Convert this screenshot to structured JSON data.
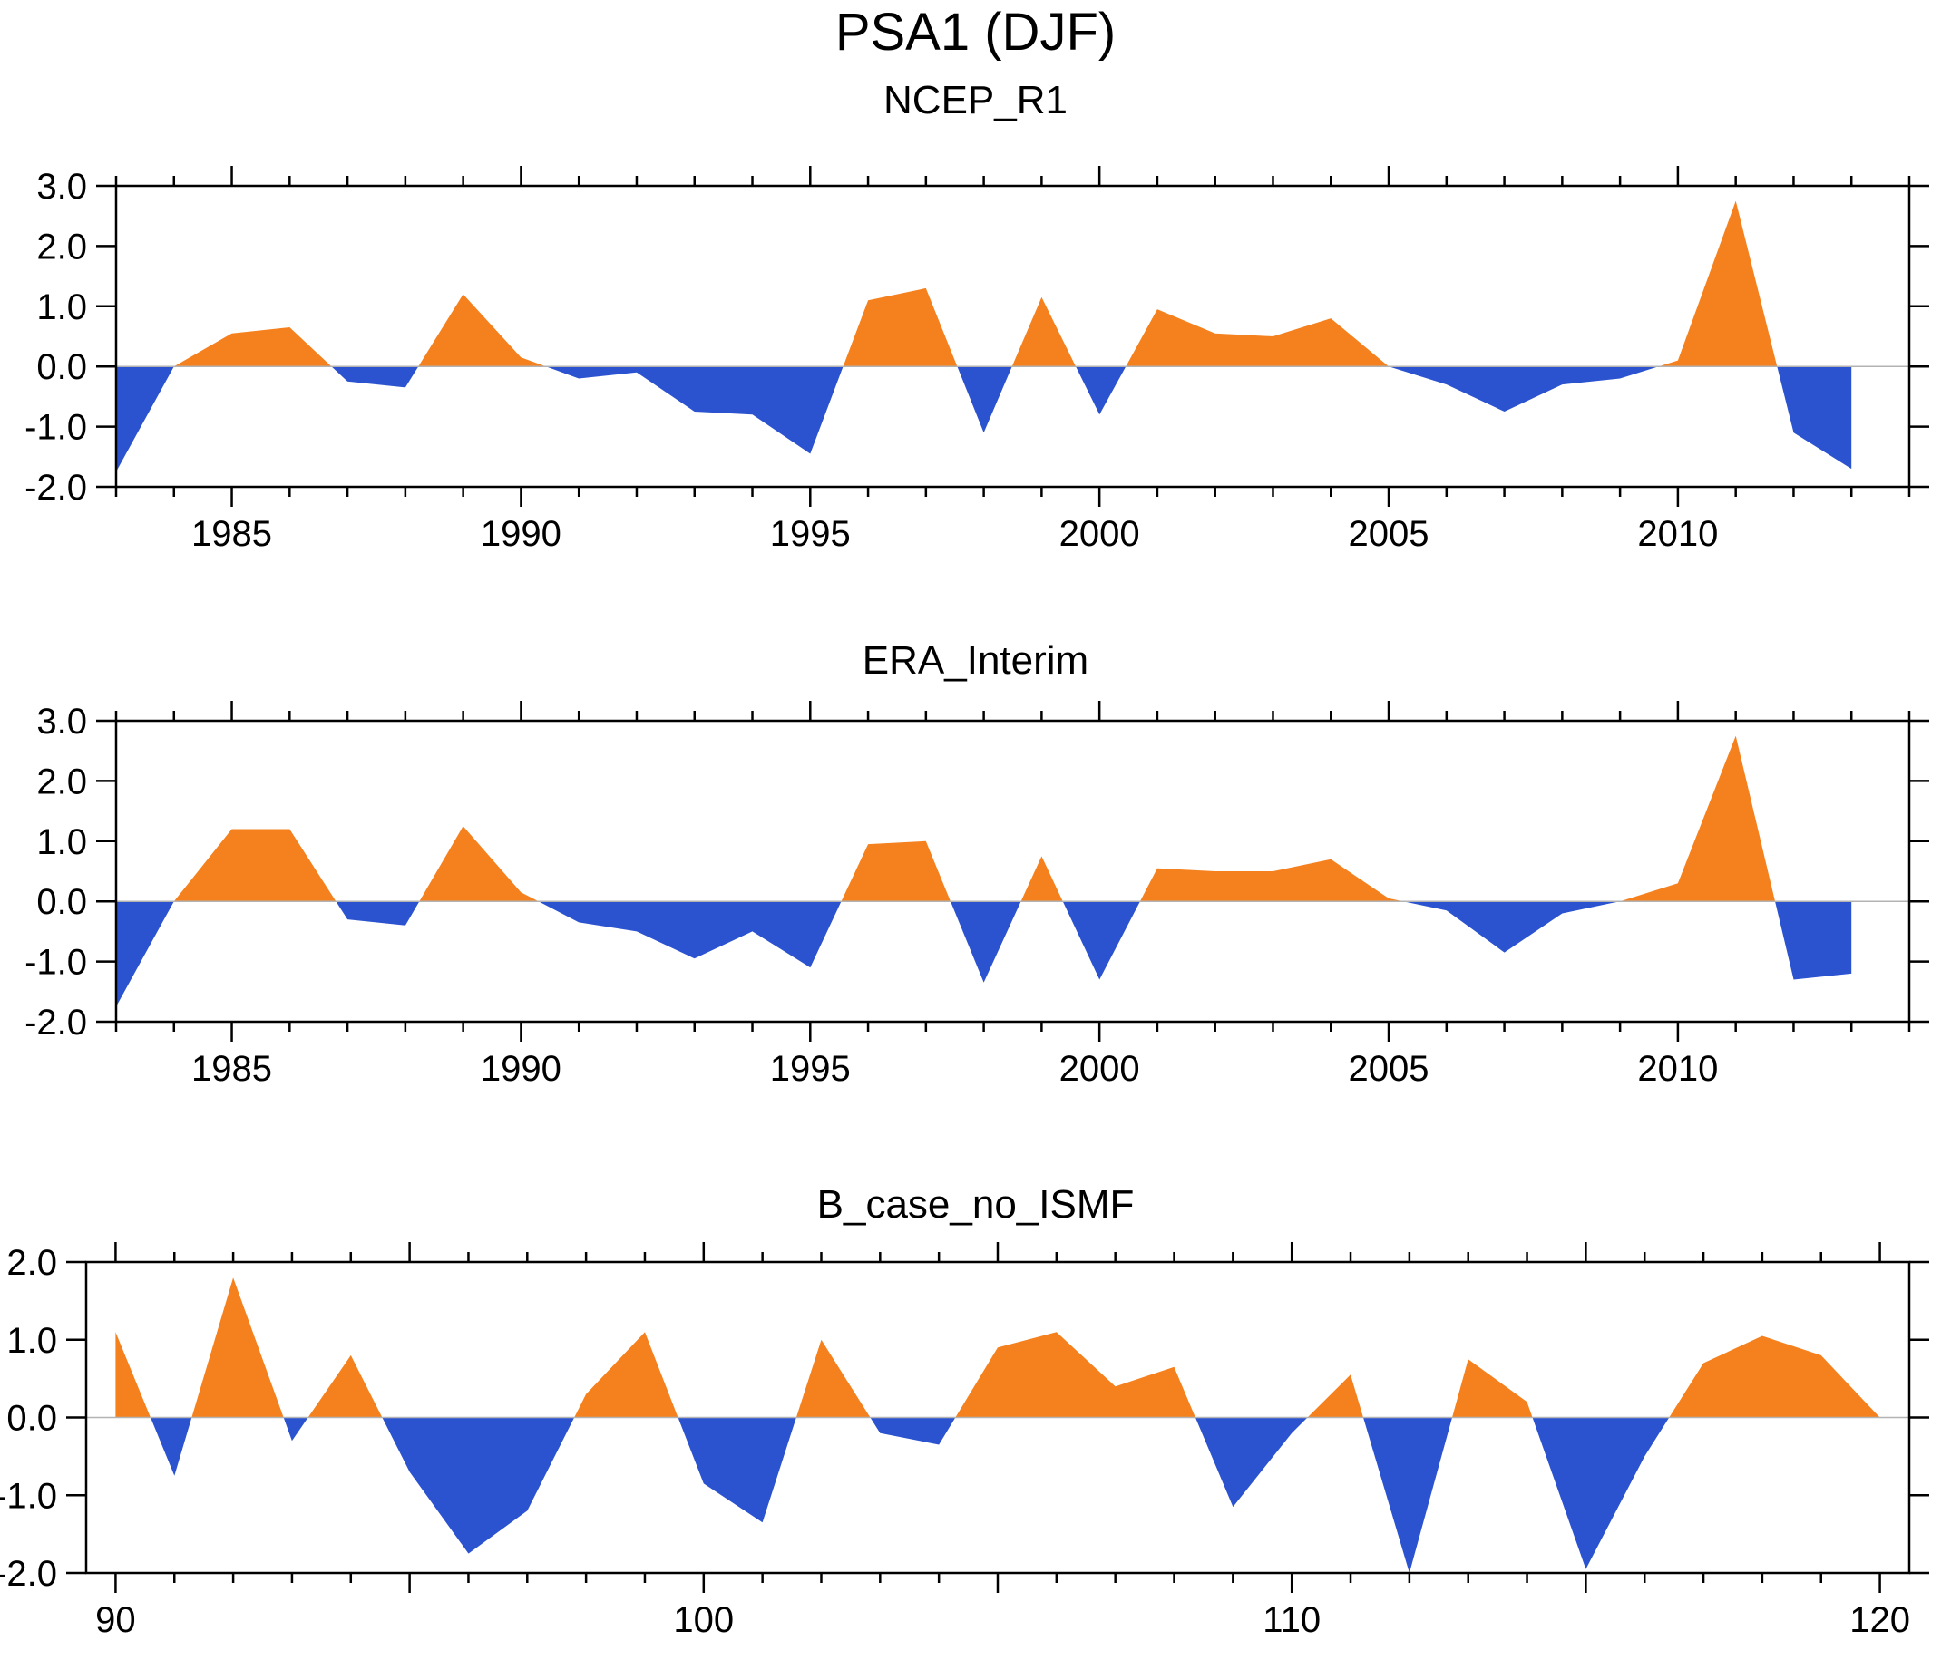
{
  "page_title": "PSA1 (DJF)",
  "colors": {
    "positive": "#F5811E",
    "negative": "#2B53CF",
    "axis": "#000000",
    "zero_line": "#B3B3B3",
    "background": "#FFFFFF",
    "text": "#000000"
  },
  "chart_data": [
    {
      "type": "area",
      "title": "NCEP_R1",
      "xlabel": "",
      "ylabel": "",
      "x": [
        1983,
        1984,
        1985,
        1986,
        1987,
        1988,
        1989,
        1990,
        1991,
        1992,
        1993,
        1994,
        1995,
        1996,
        1997,
        1998,
        1999,
        2000,
        2001,
        2002,
        2003,
        2004,
        2005,
        2006,
        2007,
        2008,
        2009,
        2010,
        2011,
        2012,
        2013
      ],
      "values": [
        -1.75,
        0.0,
        0.55,
        0.65,
        -0.25,
        -0.35,
        1.2,
        0.15,
        -0.2,
        -0.1,
        -0.75,
        -0.8,
        -1.45,
        1.1,
        1.3,
        -1.1,
        1.15,
        -0.8,
        0.95,
        0.55,
        0.5,
        0.8,
        0.0,
        -0.3,
        -0.75,
        -0.3,
        -0.2,
        0.1,
        2.75,
        -1.1,
        -1.7
      ],
      "xlim": [
        1983,
        2014
      ],
      "ylim": [
        -2,
        3
      ],
      "yticks": [
        3,
        2,
        1,
        0,
        -1,
        -2
      ],
      "ytick_labels": [
        "3.0",
        "2.0",
        "1.0",
        "0.0",
        "-1.0",
        "-2.0"
      ],
      "xticks": [
        1985,
        1990,
        1995,
        2000,
        2005,
        2010
      ],
      "xtick_labels": [
        "1985",
        "1990",
        "1995",
        "2000",
        "2005",
        "2010"
      ],
      "xtick_minor_step": 1,
      "xtick_long_every": 5,
      "grid": false,
      "legend": "none"
    },
    {
      "type": "area",
      "title": "ERA_Interim",
      "xlabel": "",
      "ylabel": "",
      "x": [
        1983,
        1984,
        1985,
        1986,
        1987,
        1988,
        1989,
        1990,
        1991,
        1992,
        1993,
        1994,
        1995,
        1996,
        1997,
        1998,
        1999,
        2000,
        2001,
        2002,
        2003,
        2004,
        2005,
        2006,
        2007,
        2008,
        2009,
        2010,
        2011,
        2012,
        2013
      ],
      "values": [
        -1.75,
        0.0,
        1.2,
        1.2,
        -0.3,
        -0.4,
        1.25,
        0.15,
        -0.35,
        -0.5,
        -0.95,
        -0.5,
        -1.1,
        0.95,
        1.0,
        -1.35,
        0.75,
        -1.3,
        0.55,
        0.5,
        0.5,
        0.7,
        0.05,
        -0.15,
        -0.85,
        -0.2,
        0.0,
        0.3,
        2.75,
        -1.3,
        -1.2
      ],
      "xlim": [
        1983,
        2014
      ],
      "ylim": [
        -2,
        3
      ],
      "yticks": [
        3,
        2,
        1,
        0,
        -1,
        -2
      ],
      "ytick_labels": [
        "3.0",
        "2.0",
        "1.0",
        "0.0",
        "-1.0",
        "-2.0"
      ],
      "xticks": [
        1985,
        1990,
        1995,
        2000,
        2005,
        2010
      ],
      "xtick_labels": [
        "1985",
        "1990",
        "1995",
        "2000",
        "2005",
        "2010"
      ],
      "xtick_minor_step": 1,
      "xtick_long_every": 5,
      "grid": false,
      "legend": "none"
    },
    {
      "type": "area",
      "title": "B_case_no_ISMF",
      "xlabel": "",
      "ylabel": "",
      "x": [
        90,
        91,
        92,
        93,
        94,
        95,
        96,
        97,
        98,
        99,
        100,
        101,
        102,
        103,
        104,
        105,
        106,
        107,
        108,
        109,
        110,
        111,
        112,
        113,
        114,
        115,
        116,
        117,
        118,
        119,
        120
      ],
      "values": [
        1.1,
        -0.75,
        1.8,
        -0.3,
        0.8,
        -0.7,
        -1.75,
        -1.2,
        0.3,
        1.1,
        -0.85,
        -1.35,
        1.0,
        -0.2,
        -0.35,
        0.9,
        1.1,
        0.4,
        0.65,
        -1.15,
        -0.2,
        0.55,
        -2.0,
        0.75,
        0.2,
        -1.95,
        -0.5,
        0.7,
        1.05,
        0.8,
        0.0
      ],
      "xlim": [
        89.5,
        120.5
      ],
      "ylim": [
        -2,
        2
      ],
      "yticks": [
        2,
        1,
        0,
        -1,
        -2
      ],
      "ytick_labels": [
        "2.0",
        "1.0",
        "0.0",
        "-1.0",
        "-2.0"
      ],
      "xticks": [
        90,
        100,
        110,
        120
      ],
      "xtick_labels": [
        "90",
        "100",
        "110",
        "120"
      ],
      "xtick_minor_step": 1,
      "xtick_long_every": 5,
      "grid": false,
      "legend": "none"
    }
  ]
}
